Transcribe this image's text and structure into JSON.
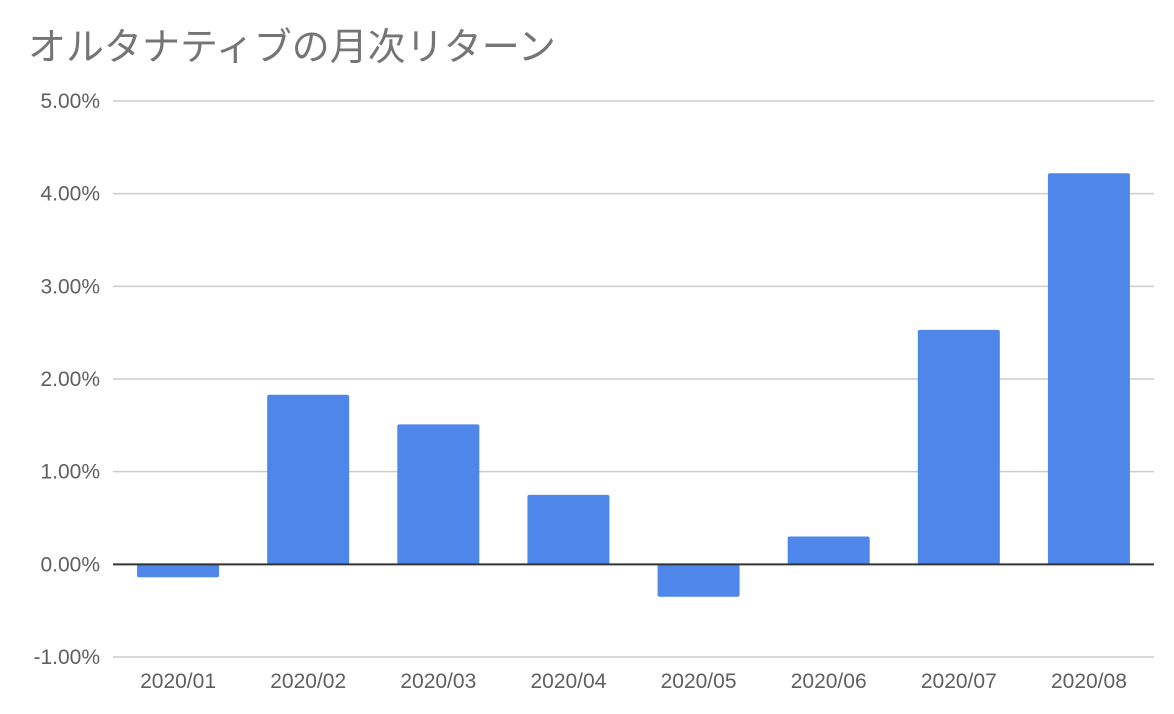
{
  "chart_data": {
    "type": "bar",
    "title": "オルタナティブの月次リターン",
    "xlabel": "",
    "ylabel": "",
    "categories": [
      "2020/01",
      "2020/02",
      "2020/03",
      "2020/04",
      "2020/05",
      "2020/06",
      "2020/07",
      "2020/08"
    ],
    "series": [
      {
        "values": [
          -0.14,
          1.83,
          1.51,
          0.75,
          -0.35,
          0.3,
          2.53,
          4.22
        ]
      }
    ],
    "ylim": [
      -1.0,
      5.0
    ],
    "y_ticks": [
      "-1.00%",
      "0.00%",
      "1.00%",
      "2.00%",
      "3.00%",
      "4.00%",
      "5.00%"
    ],
    "y_tick_values": [
      -1,
      0,
      1,
      2,
      3,
      4,
      5
    ],
    "grid": true,
    "legend": "none",
    "colors": {
      "bar": "#4f86ea",
      "grid": "#cccccc",
      "zero_line": "#333333"
    }
  }
}
